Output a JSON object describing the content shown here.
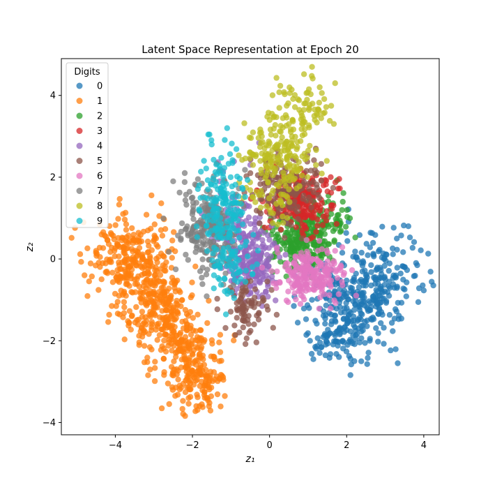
{
  "chart_data": {
    "type": "scatter",
    "title": "Latent Space Representation at Epoch 20",
    "xlabel": "z₁",
    "ylabel": "z₂",
    "xlim": [
      -5.4,
      4.4
    ],
    "ylim": [
      -4.3,
      4.9
    ],
    "x_ticks": [
      -4,
      -2,
      0,
      2,
      4
    ],
    "y_ticks": [
      -4,
      -2,
      0,
      2,
      4
    ],
    "grid": false,
    "legend": {
      "title": "Digits",
      "position": "top-left"
    },
    "series": [
      {
        "name": "0",
        "color": "#1f77b4",
        "points": [
          [
            2.0,
            -1.2
          ],
          [
            1.6,
            -1.6
          ],
          [
            2.4,
            -0.9
          ],
          [
            3.0,
            -0.5
          ],
          [
            3.3,
            0.5
          ],
          [
            2.6,
            -2.0
          ],
          [
            1.3,
            -2.3
          ],
          [
            1.8,
            -0.6
          ],
          [
            2.9,
            -1.3
          ],
          [
            3.5,
            -0.2
          ],
          [
            1.1,
            -1.0
          ],
          [
            2.2,
            -2.5
          ],
          [
            3.6,
            0.8
          ],
          [
            2.7,
            0.1
          ],
          [
            1.5,
            -0.3
          ],
          [
            2.3,
            -1.7
          ],
          [
            3.1,
            -0.9
          ],
          [
            1.9,
            -2.0
          ],
          [
            3.8,
            -0.1
          ],
          [
            2.5,
            -0.4
          ]
        ],
        "cloud": [
          {
            "cx": 2.2,
            "cy": -1.0,
            "sx": 0.6,
            "sy": 0.6,
            "n": 260
          },
          {
            "cx": 3.1,
            "cy": -0.3,
            "sx": 0.45,
            "sy": 0.6,
            "n": 90
          },
          {
            "cx": 1.8,
            "cy": -2.0,
            "sx": 0.4,
            "sy": 0.35,
            "n": 70
          }
        ]
      },
      {
        "name": "1",
        "color": "#ff7f0e",
        "points": [
          [
            -3.5,
            -0.5
          ],
          [
            -4.1,
            0.6
          ],
          [
            -2.7,
            -1.6
          ],
          [
            -2.2,
            -2.2
          ],
          [
            -1.7,
            -3.1
          ],
          [
            -3.0,
            -0.8
          ],
          [
            -4.5,
            0.2
          ],
          [
            -2.5,
            -2.8
          ],
          [
            -1.9,
            -3.6
          ],
          [
            -3.8,
            1.1
          ],
          [
            -2.9,
            0.3
          ],
          [
            -1.3,
            -2.5
          ],
          [
            -3.3,
            -1.9
          ],
          [
            -4.8,
            -0.4
          ],
          [
            -2.1,
            -3.4
          ]
        ],
        "cloud": [
          {
            "cx": -3.6,
            "cy": 0.0,
            "sx": 0.5,
            "sy": 0.6,
            "n": 260
          },
          {
            "cx": -2.9,
            "cy": -1.2,
            "sx": 0.45,
            "sy": 0.55,
            "n": 220
          },
          {
            "cx": -2.2,
            "cy": -2.3,
            "sx": 0.45,
            "sy": 0.45,
            "n": 170
          },
          {
            "cx": -1.8,
            "cy": -3.1,
            "sx": 0.35,
            "sy": 0.35,
            "n": 90
          }
        ]
      },
      {
        "name": "2",
        "color": "#2ca02c",
        "points": [
          [
            0.8,
            0.5
          ],
          [
            1.1,
            0.9
          ],
          [
            0.4,
            -0.1
          ],
          [
            1.6,
            1.1
          ],
          [
            0.9,
            -0.3
          ],
          [
            1.9,
            1.4
          ],
          [
            0.2,
            0.6
          ],
          [
            1.3,
            0.2
          ]
        ],
        "cloud": [
          {
            "cx": 0.9,
            "cy": 0.4,
            "sx": 0.45,
            "sy": 0.35,
            "n": 220
          },
          {
            "cx": 1.5,
            "cy": 0.9,
            "sx": 0.35,
            "sy": 0.3,
            "n": 60
          }
        ]
      },
      {
        "name": "3",
        "color": "#d62728",
        "points": [
          [
            0.7,
            1.6
          ],
          [
            1.0,
            1.2
          ],
          [
            0.4,
            1.1
          ],
          [
            1.4,
            1.8
          ],
          [
            0.9,
            2.1
          ],
          [
            0.2,
            1.5
          ],
          [
            1.6,
            1.3
          ]
        ],
        "cloud": [
          {
            "cx": 0.8,
            "cy": 1.4,
            "sx": 0.4,
            "sy": 0.35,
            "n": 220
          }
        ]
      },
      {
        "name": "4",
        "color": "#9467bd",
        "points": [
          [
            -0.6,
            0.1
          ],
          [
            -0.3,
            -0.4
          ],
          [
            -0.8,
            0.6
          ],
          [
            -0.2,
            0.3
          ],
          [
            -0.9,
            -0.2
          ],
          [
            -1.3,
            1.9
          ],
          [
            -0.5,
            2.3
          ],
          [
            -0.1,
            -0.8
          ]
        ],
        "cloud": [
          {
            "cx": -0.5,
            "cy": 0.0,
            "sx": 0.35,
            "sy": 0.45,
            "n": 220
          },
          {
            "cx": -0.9,
            "cy": 1.0,
            "sx": 0.35,
            "sy": 0.5,
            "n": 60
          }
        ]
      },
      {
        "name": "5",
        "color": "#8c564b",
        "points": [
          [
            0.3,
            2.3
          ],
          [
            0.9,
            2.0
          ],
          [
            -0.6,
            -1.2
          ],
          [
            -0.4,
            -1.6
          ],
          [
            1.2,
            2.7
          ],
          [
            0.0,
            1.1
          ],
          [
            -0.7,
            -0.9
          ]
        ],
        "cloud": [
          {
            "cx": 0.4,
            "cy": 1.8,
            "sx": 0.5,
            "sy": 0.45,
            "n": 150
          },
          {
            "cx": -0.6,
            "cy": -1.2,
            "sx": 0.28,
            "sy": 0.3,
            "n": 80
          }
        ]
      },
      {
        "name": "6",
        "color": "#e377c2",
        "points": [
          [
            0.9,
            -0.4
          ],
          [
            1.3,
            -0.1
          ],
          [
            0.6,
            -0.7
          ],
          [
            1.7,
            0.2
          ],
          [
            0.8,
            -1.1
          ],
          [
            1.1,
            -0.6
          ]
        ],
        "cloud": [
          {
            "cx": 1.1,
            "cy": -0.4,
            "sx": 0.45,
            "sy": 0.3,
            "n": 220
          }
        ]
      },
      {
        "name": "7",
        "color": "#7f7f7f",
        "points": [
          [
            -1.6,
            1.2
          ],
          [
            -1.9,
            1.8
          ],
          [
            -1.4,
            0.3
          ],
          [
            -2.2,
            2.1
          ],
          [
            -1.8,
            -0.3
          ],
          [
            -1.1,
            0.8
          ],
          [
            -2.5,
            1.9
          ]
        ],
        "cloud": [
          {
            "cx": -1.6,
            "cy": 0.8,
            "sx": 0.4,
            "sy": 0.6,
            "n": 220
          }
        ]
      },
      {
        "name": "8",
        "color": "#bcbd22",
        "points": [
          [
            0.2,
            2.8
          ],
          [
            0.5,
            3.3
          ],
          [
            -0.1,
            2.3
          ],
          [
            0.9,
            3.8
          ],
          [
            1.3,
            4.2
          ],
          [
            -0.5,
            2.6
          ],
          [
            0.4,
            1.9
          ],
          [
            1.7,
            4.3
          ]
        ],
        "cloud": [
          {
            "cx": 0.3,
            "cy": 2.6,
            "sx": 0.45,
            "sy": 0.5,
            "n": 160
          },
          {
            "cx": 0.9,
            "cy": 3.7,
            "sx": 0.4,
            "sy": 0.35,
            "n": 70
          },
          {
            "cx": 0.0,
            "cy": 1.5,
            "sx": 0.3,
            "sy": 0.4,
            "n": 40
          }
        ]
      },
      {
        "name": "9",
        "color": "#17becf",
        "points": [
          [
            -1.2,
            2.0
          ],
          [
            -1.5,
            2.8
          ],
          [
            -1.0,
            1.2
          ],
          [
            -0.9,
            0.1
          ],
          [
            -1.3,
            -0.5
          ],
          [
            -1.7,
            2.4
          ],
          [
            -1.1,
            3.2
          ]
        ],
        "cloud": [
          {
            "cx": -1.2,
            "cy": 1.4,
            "sx": 0.3,
            "sy": 0.7,
            "n": 160
          },
          {
            "cx": -1.0,
            "cy": -0.2,
            "sx": 0.3,
            "sy": 0.4,
            "n": 60
          }
        ]
      }
    ]
  }
}
